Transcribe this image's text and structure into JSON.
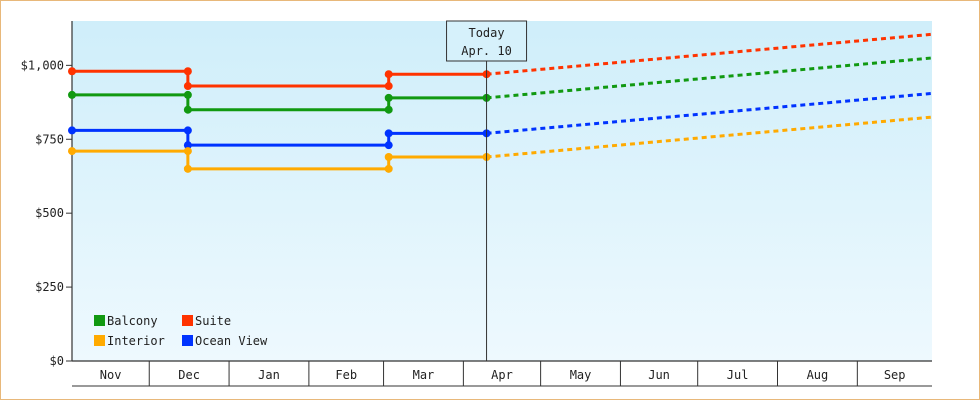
{
  "chart_data": {
    "type": "line",
    "title": "",
    "xlabel": "",
    "ylabel": "",
    "ylim": [
      0,
      1150
    ],
    "y_ticks": [
      {
        "value": 0,
        "label": "$0"
      },
      {
        "value": 250,
        "label": "$250"
      },
      {
        "value": 500,
        "label": "$500"
      },
      {
        "value": 750,
        "label": "$750"
      },
      {
        "value": 1000,
        "label": "$1,000"
      }
    ],
    "x_axis": {
      "start": "Nov 1",
      "end": "Sep 30",
      "months": [
        "Nov",
        "Dec",
        "Jan",
        "Feb",
        "Mar",
        "Apr",
        "May",
        "Jun",
        "Jul",
        "Aug",
        "Sep"
      ],
      "month_days": [
        30,
        31,
        31,
        29,
        31,
        30,
        31,
        30,
        31,
        31,
        30
      ]
    },
    "today": {
      "title": "Today",
      "date_label": "Apr. 10",
      "x": "Apr 10"
    },
    "grid": false,
    "legend": {
      "position": "bottom-left"
    },
    "series": [
      {
        "name": "Suite",
        "color": "#ff3300",
        "points": [
          [
            "Nov 1",
            980
          ],
          [
            "Dec 16",
            980
          ],
          [
            "Dec 16",
            930
          ],
          [
            "Mar 3",
            930
          ],
          [
            "Mar 3",
            970
          ],
          [
            "Apr 10",
            970
          ]
        ],
        "markers": [
          [
            "Nov 1",
            980
          ],
          [
            "Dec 16",
            980
          ],
          [
            "Dec 16",
            930
          ],
          [
            "Mar 3",
            930
          ],
          [
            "Mar 3",
            970
          ],
          [
            "Apr 10",
            970
          ]
        ],
        "forecast": [
          [
            "Apr 10",
            970
          ],
          [
            "Sep 30",
            1105
          ]
        ]
      },
      {
        "name": "Balcony",
        "color": "#119911",
        "points": [
          [
            "Nov 1",
            900
          ],
          [
            "Dec 16",
            900
          ],
          [
            "Dec 16",
            850
          ],
          [
            "Mar 3",
            850
          ],
          [
            "Mar 3",
            890
          ],
          [
            "Apr 10",
            890
          ]
        ],
        "markers": [
          [
            "Nov 1",
            900
          ],
          [
            "Dec 16",
            900
          ],
          [
            "Dec 16",
            850
          ],
          [
            "Mar 3",
            850
          ],
          [
            "Mar 3",
            890
          ],
          [
            "Apr 10",
            890
          ]
        ],
        "forecast": [
          [
            "Apr 10",
            890
          ],
          [
            "Sep 30",
            1025
          ]
        ]
      },
      {
        "name": "Ocean View",
        "color": "#0033ff",
        "points": [
          [
            "Nov 1",
            780
          ],
          [
            "Dec 16",
            780
          ],
          [
            "Dec 16",
            730
          ],
          [
            "Mar 3",
            730
          ],
          [
            "Mar 3",
            770
          ],
          [
            "Apr 10",
            770
          ]
        ],
        "markers": [
          [
            "Nov 1",
            780
          ],
          [
            "Dec 16",
            780
          ],
          [
            "Dec 16",
            730
          ],
          [
            "Mar 3",
            730
          ],
          [
            "Mar 3",
            770
          ],
          [
            "Apr 10",
            770
          ]
        ],
        "forecast": [
          [
            "Apr 10",
            770
          ],
          [
            "Sep 30",
            905
          ]
        ]
      },
      {
        "name": "Interior",
        "color": "#ffaa00",
        "points": [
          [
            "Nov 1",
            710
          ],
          [
            "Dec 16",
            710
          ],
          [
            "Dec 16",
            650
          ],
          [
            "Mar 3",
            650
          ],
          [
            "Mar 3",
            690
          ],
          [
            "Apr 10",
            690
          ]
        ],
        "markers": [
          [
            "Nov 1",
            710
          ],
          [
            "Dec 16",
            710
          ],
          [
            "Dec 16",
            650
          ],
          [
            "Mar 3",
            650
          ],
          [
            "Mar 3",
            690
          ],
          [
            "Apr 10",
            690
          ]
        ],
        "forecast": [
          [
            "Apr 10",
            690
          ],
          [
            "Sep 30",
            825
          ]
        ]
      }
    ],
    "legend_order": [
      "Balcony",
      "Suite",
      "Interior",
      "Ocean View"
    ]
  }
}
